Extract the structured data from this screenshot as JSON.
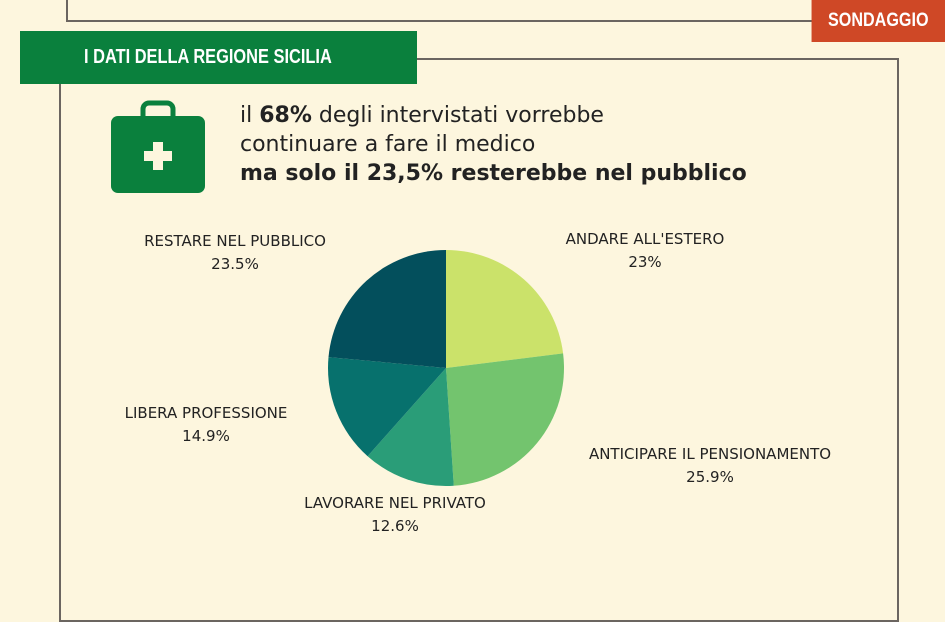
{
  "badge": "SONDAGGIO",
  "header": "I DATI DELLA REGIONE SICILIA",
  "headline": {
    "line1_pre": "il ",
    "line1_bold": "68%",
    "line1_post": " degli intervistati vorrebbe",
    "line2": "continuare a fare il medico",
    "line3": "ma solo il 23,5% resterebbe nel pubblico"
  },
  "icon": "medical-kit-icon",
  "chart_data": {
    "type": "pie",
    "start": "top",
    "direction": "clockwise",
    "slices": [
      {
        "label": "ANDARE ALL'ESTERO",
        "value": 23,
        "value_label": "23%",
        "color": "#cbe26a"
      },
      {
        "label": "ANTICIPARE IL PENSIONAMENTO",
        "value": 25.9,
        "value_label": "25.9%",
        "color": "#73c46e"
      },
      {
        "label": "LAVORARE NEL PRIVATO",
        "value": 12.6,
        "value_label": "12.6%",
        "color": "#2a9d78"
      },
      {
        "label": "LIBERA PROFESSIONE",
        "value": 14.9,
        "value_label": "14.9%",
        "color": "#07716d"
      },
      {
        "label": "RESTARE NEL PUBBLICO",
        "value": 23.5,
        "value_label": "23.5%",
        "color": "#034f5c"
      }
    ]
  }
}
